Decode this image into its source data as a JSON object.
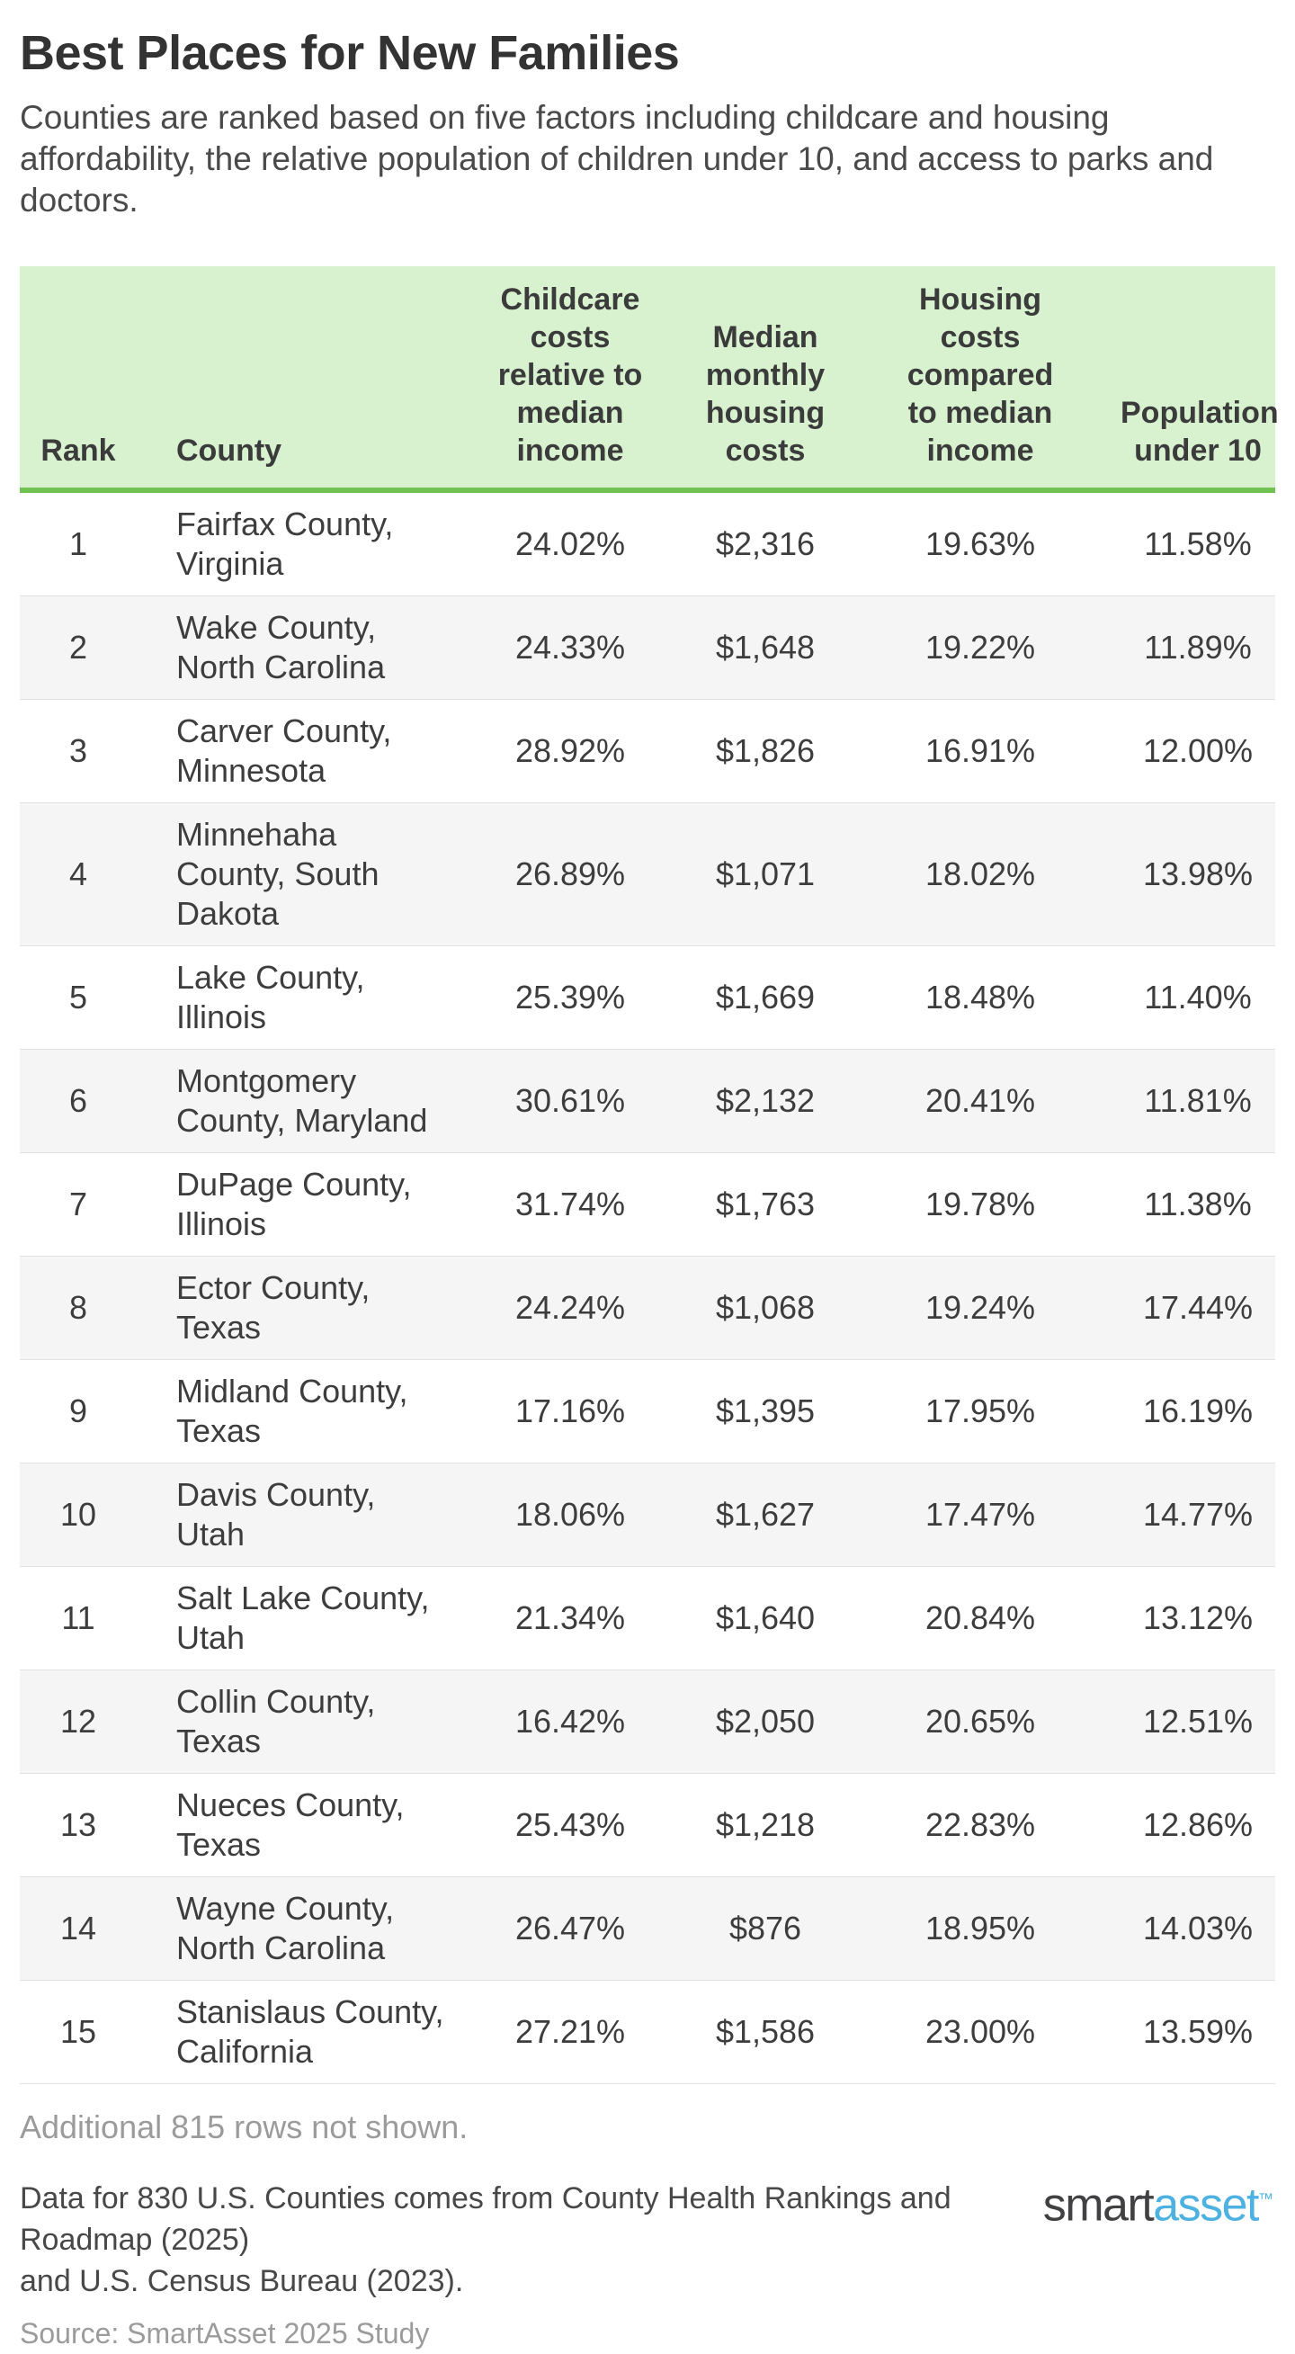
{
  "page": {
    "title": "Best Places for New Families",
    "description": "Counties are ranked based on five factors including childcare and housing\naffordability, the relative population of children under 10, and access to parks and\ndoctors."
  },
  "table": {
    "headers": {
      "rank": "Rank",
      "county": "County",
      "childcare": "Childcare\ncosts\nrelative to\nmedian\nincome",
      "median": "Median\nmonthly\nhousing\ncosts",
      "housing": "Housing\ncosts\ncompared\nto median\nincome",
      "population": "Population\nunder 10"
    },
    "rows": [
      {
        "rank": "1",
        "county": "Fairfax County,\nVirginia",
        "childcare": "24.02%",
        "median": "$2,316",
        "housing": "19.63%",
        "population": "11.58%"
      },
      {
        "rank": "2",
        "county": "Wake County,\nNorth Carolina",
        "childcare": "24.33%",
        "median": "$1,648",
        "housing": "19.22%",
        "population": "11.89%"
      },
      {
        "rank": "3",
        "county": "Carver County,\nMinnesota",
        "childcare": "28.92%",
        "median": "$1,826",
        "housing": "16.91%",
        "population": "12.00%"
      },
      {
        "rank": "4",
        "county": "Minnehaha\nCounty, South\nDakota",
        "childcare": "26.89%",
        "median": "$1,071",
        "housing": "18.02%",
        "population": "13.98%"
      },
      {
        "rank": "5",
        "county": "Lake County,\nIllinois",
        "childcare": "25.39%",
        "median": "$1,669",
        "housing": "18.48%",
        "population": "11.40%"
      },
      {
        "rank": "6",
        "county": "Montgomery\nCounty, Maryland",
        "childcare": "30.61%",
        "median": "$2,132",
        "housing": "20.41%",
        "population": "11.81%"
      },
      {
        "rank": "7",
        "county": "DuPage County,\nIllinois",
        "childcare": "31.74%",
        "median": "$1,763",
        "housing": "19.78%",
        "population": "11.38%"
      },
      {
        "rank": "8",
        "county": "Ector County,\nTexas",
        "childcare": "24.24%",
        "median": "$1,068",
        "housing": "19.24%",
        "population": "17.44%"
      },
      {
        "rank": "9",
        "county": "Midland County,\nTexas",
        "childcare": "17.16%",
        "median": "$1,395",
        "housing": "17.95%",
        "population": "16.19%"
      },
      {
        "rank": "10",
        "county": "Davis County,\nUtah",
        "childcare": "18.06%",
        "median": "$1,627",
        "housing": "17.47%",
        "population": "14.77%"
      },
      {
        "rank": "11",
        "county": "Salt Lake County,\nUtah",
        "childcare": "21.34%",
        "median": "$1,640",
        "housing": "20.84%",
        "population": "13.12%"
      },
      {
        "rank": "12",
        "county": "Collin County,\nTexas",
        "childcare": "16.42%",
        "median": "$2,050",
        "housing": "20.65%",
        "population": "12.51%"
      },
      {
        "rank": "13",
        "county": "Nueces County,\nTexas",
        "childcare": "25.43%",
        "median": "$1,218",
        "housing": "22.83%",
        "population": "12.86%"
      },
      {
        "rank": "14",
        "county": "Wayne County,\nNorth Carolina",
        "childcare": "26.47%",
        "median": "$876",
        "housing": "18.95%",
        "population": "14.03%"
      },
      {
        "rank": "15",
        "county": "Stanislaus County,\nCalifornia",
        "childcare": "27.21%",
        "median": "$1,586",
        "housing": "23.00%",
        "population": "13.59%"
      }
    ]
  },
  "footer": {
    "additional_rows_note": "Additional 815 rows not shown.",
    "data_note": "Data for 830 U.S. Counties comes from County Health Rankings and Roadmap (2025)\nand U.S. Census Bureau (2023).",
    "source": "Source: SmartAsset 2025 Study",
    "logo": {
      "smart": "smart",
      "asset": "asset",
      "tm": "™"
    }
  },
  "colors": {
    "header_bg": "#d8f2d0",
    "header_border_green": "#72c153",
    "alt_row_bg": "#f5f5f5",
    "row_divider": "#e2e2e2",
    "text_dark": "#3d3d3d",
    "text_gray": "#9b9b9b",
    "logo_smart": "#414042",
    "logo_asset": "#4db1e2"
  },
  "chart_data": {
    "type": "table",
    "title": "Best Places for New Families",
    "subtitle": "Counties are ranked based on five factors including childcare and housing affordability, the relative population of children under 10, and access to parks and doctors.",
    "columns": [
      "Rank",
      "County",
      "Childcare costs relative to median income",
      "Median monthly housing costs",
      "Housing costs compared to median income",
      "Population under 10"
    ],
    "rows": [
      [
        1,
        "Fairfax County, Virginia",
        "24.02%",
        "$2,316",
        "19.63%",
        "11.58%"
      ],
      [
        2,
        "Wake County, North Carolina",
        "24.33%",
        "$1,648",
        "19.22%",
        "11.89%"
      ],
      [
        3,
        "Carver County, Minnesota",
        "28.92%",
        "$1,826",
        "16.91%",
        "12.00%"
      ],
      [
        4,
        "Minnehaha County, South Dakota",
        "26.89%",
        "$1,071",
        "18.02%",
        "13.98%"
      ],
      [
        5,
        "Lake County, Illinois",
        "25.39%",
        "$1,669",
        "18.48%",
        "11.40%"
      ],
      [
        6,
        "Montgomery County, Maryland",
        "30.61%",
        "$2,132",
        "20.41%",
        "11.81%"
      ],
      [
        7,
        "DuPage County, Illinois",
        "31.74%",
        "$1,763",
        "19.78%",
        "11.38%"
      ],
      [
        8,
        "Ector County, Texas",
        "24.24%",
        "$1,068",
        "19.24%",
        "17.44%"
      ],
      [
        9,
        "Midland County, Texas",
        "17.16%",
        "$1,395",
        "17.95%",
        "16.19%"
      ],
      [
        10,
        "Davis County, Utah",
        "18.06%",
        "$1,627",
        "17.47%",
        "14.77%"
      ],
      [
        11,
        "Salt Lake County, Utah",
        "21.34%",
        "$1,640",
        "20.84%",
        "13.12%"
      ],
      [
        12,
        "Collin County, Texas",
        "16.42%",
        "$2,050",
        "20.65%",
        "12.51%"
      ],
      [
        13,
        "Nueces County, Texas",
        "25.43%",
        "$1,218",
        "22.83%",
        "12.86%"
      ],
      [
        14,
        "Wayne County, North Carolina",
        "26.47%",
        "$876",
        "18.95%",
        "14.03%"
      ],
      [
        15,
        "Stanislaus County, California",
        "27.21%",
        "$1,586",
        "23.00%",
        "13.59%"
      ]
    ],
    "notes": [
      "Additional 815 rows not shown.",
      "Data for 830 U.S. Counties comes from County Health Rankings and Roadmap (2025) and U.S. Census Bureau (2023).",
      "Source: SmartAsset 2025 Study"
    ]
  }
}
